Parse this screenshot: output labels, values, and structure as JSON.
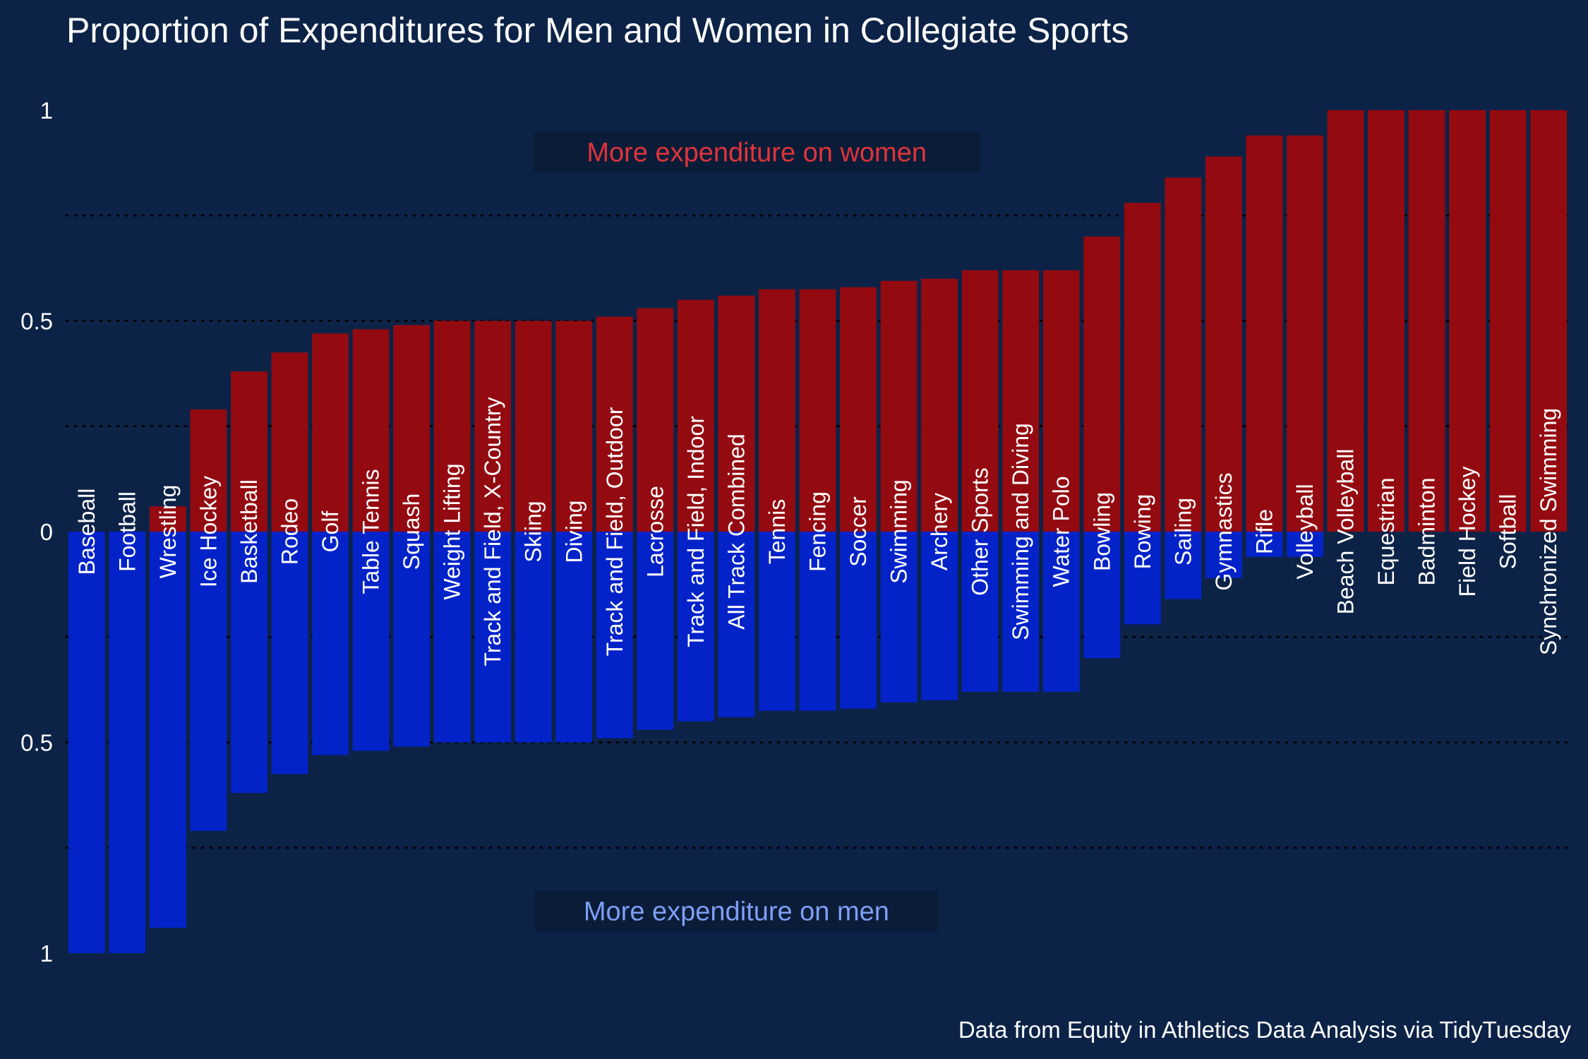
{
  "chart_data": {
    "type": "bar",
    "title": "Proportion of Expenditures for Men and Women in Collegiate Sports",
    "caption": "Data from Equity in Athletics Data Analysis via TidyTuesday",
    "xlabel": "",
    "ylabel": "",
    "ylim": [
      -1,
      1
    ],
    "y_ticks": [
      {
        "value": 1,
        "label": "1"
      },
      {
        "value": 0.5,
        "label": "0.5"
      },
      {
        "value": 0,
        "label": "0"
      },
      {
        "value": -0.5,
        "label": "0.5"
      },
      {
        "value": -1,
        "label": "1"
      }
    ],
    "gridlines": [
      0.75,
      0.5,
      0.25,
      -0.25,
      -0.5,
      -0.75
    ],
    "grid": "dotted horizontal",
    "annotations": [
      {
        "text": "More expenditure on women",
        "series": "women",
        "y": 0.9,
        "x_center_category": 17
      },
      {
        "text": "More expenditure on men",
        "series": "men",
        "y": -0.9,
        "x_center_category": 16.5
      }
    ],
    "categories": [
      "Baseball",
      "Football",
      "Wrestling",
      "Ice Hockey",
      "Basketball",
      "Rodeo",
      "Golf",
      "Table Tennis",
      "Squash",
      "Weight Lifting",
      "Track and Field, X-Country",
      "Skiing",
      "Diving",
      "Track and Field, Outdoor",
      "Lacrosse",
      "Track and Field, Indoor",
      "All Track Combined",
      "Tennis",
      "Fencing",
      "Soccer",
      "Swimming",
      "Archery",
      "Other Sports",
      "Swimming and Diving",
      "Water Polo",
      "Bowling",
      "Rowing",
      "Sailing",
      "Gymnastics",
      "Rifle",
      "Volleyball",
      "Beach Volleyball",
      "Equestrian",
      "Badminton",
      "Field Hockey",
      "Softball",
      "Synchronized Swimming"
    ],
    "series": [
      {
        "name": "women",
        "values": [
          0,
          0,
          0.06,
          0.29,
          0.38,
          0.425,
          0.47,
          0.48,
          0.49,
          0.5,
          0.5,
          0.5,
          0.5,
          0.51,
          0.53,
          0.55,
          0.56,
          0.575,
          0.575,
          0.58,
          0.595,
          0.6,
          0.62,
          0.62,
          0.62,
          0.7,
          0.78,
          0.84,
          0.89,
          0.94,
          0.94,
          1,
          1,
          1,
          1,
          1,
          1
        ]
      },
      {
        "name": "men",
        "values": [
          1,
          1,
          0.94,
          0.71,
          0.62,
          0.575,
          0.53,
          0.52,
          0.51,
          0.5,
          0.5,
          0.5,
          0.5,
          0.49,
          0.47,
          0.45,
          0.44,
          0.425,
          0.425,
          0.42,
          0.405,
          0.4,
          0.38,
          0.38,
          0.38,
          0.3,
          0.22,
          0.16,
          0.11,
          0.06,
          0.06,
          0,
          0,
          0,
          0,
          0,
          0
        ]
      }
    ],
    "colors": {
      "background": "#0c2347",
      "women_bar": "#930a10",
      "men_bar": "#0323c9",
      "women_text": "#e0343a",
      "men_text": "#7d9ff5",
      "label_box": "#0a1c38",
      "grid": "#000000"
    }
  }
}
